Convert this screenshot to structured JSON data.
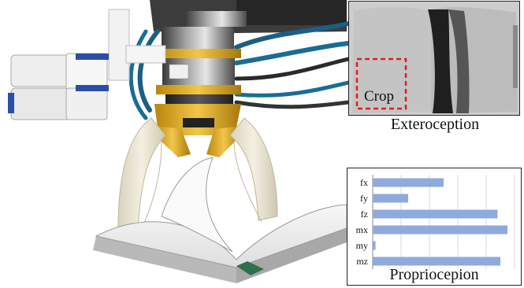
{
  "exteroception": {
    "title": "Exteroception",
    "crop_label": "Crop",
    "crop_color": "#e31c1c"
  },
  "proprioception": {
    "title": "Propriocepion",
    "bar_color": "#8faadc"
  },
  "chart_data": {
    "type": "bar",
    "orientation": "horizontal",
    "categories": [
      "fx",
      "fy",
      "fz",
      "mx",
      "my",
      "mz"
    ],
    "values": [
      0.5,
      0.25,
      0.88,
      0.95,
      0.02,
      0.9
    ],
    "xlim": [
      0,
      1
    ],
    "grid": true,
    "title": "Propriocepion"
  }
}
